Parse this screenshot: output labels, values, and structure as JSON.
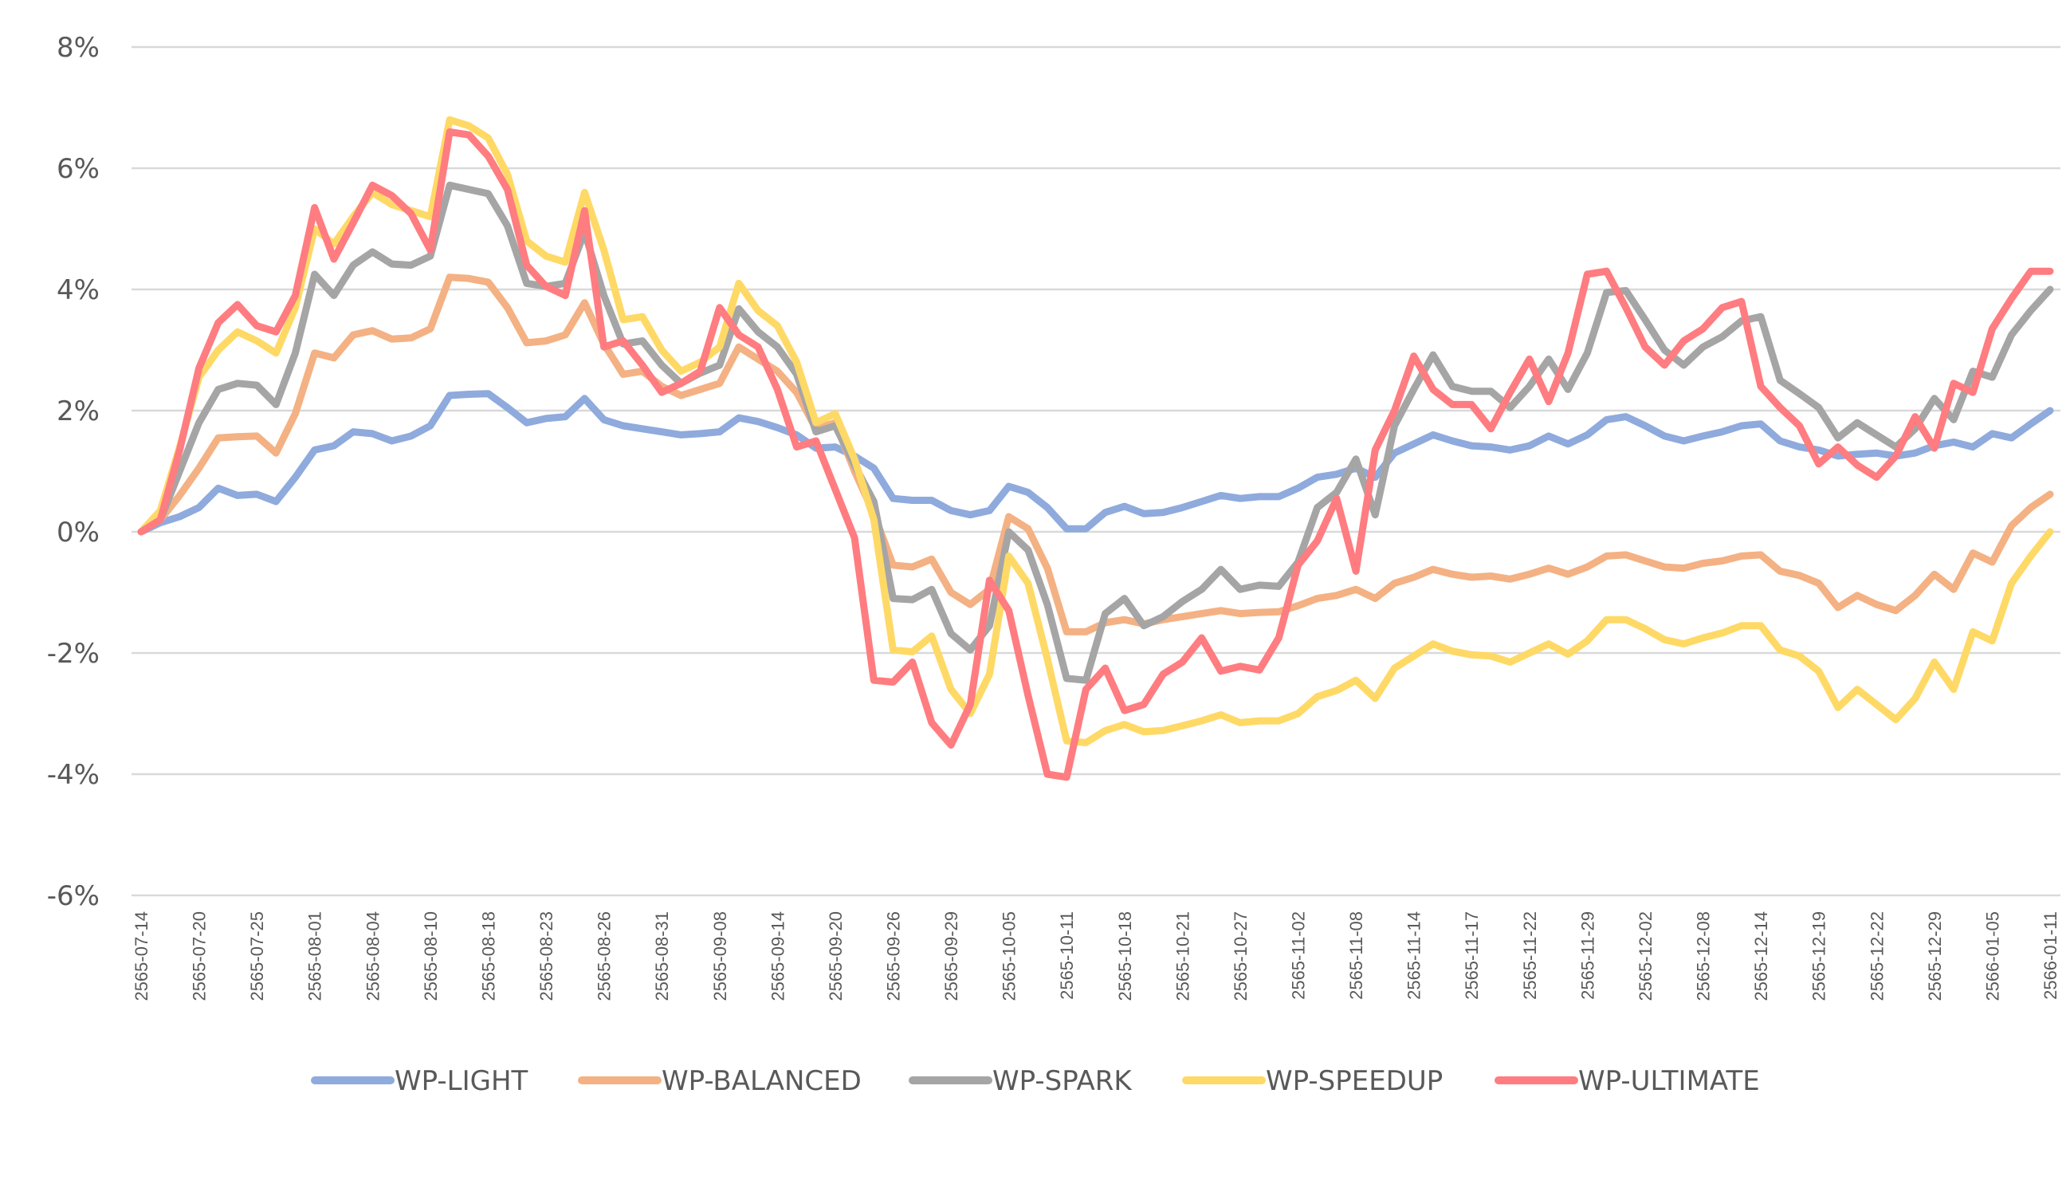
{
  "chart_data": {
    "type": "line",
    "title": "",
    "xlabel": "",
    "ylabel": "",
    "ylim": [
      -6,
      8
    ],
    "yticks": [
      8,
      6,
      4,
      2,
      0,
      -2,
      -4,
      -6
    ],
    "ytick_labels": [
      "8%",
      "6%",
      "4%",
      "2%",
      "0%",
      "-2%",
      "-4%",
      "-6%"
    ],
    "grid": true,
    "legend_position": "bottom",
    "x_tick_labels": [
      "2565-07-14",
      "2565-07-20",
      "2565-07-25",
      "2565-08-01",
      "2565-08-04",
      "2565-08-10",
      "2565-08-18",
      "2565-08-23",
      "2565-08-26",
      "2565-08-31",
      "2565-09-08",
      "2565-09-14",
      "2565-09-20",
      "2565-09-26",
      "2565-09-29",
      "2565-10-05",
      "2565-10-11",
      "2565-10-18",
      "2565-10-21",
      "2565-10-27",
      "2565-11-02",
      "2565-11-08",
      "2565-11-14",
      "2565-11-17",
      "2565-11-22",
      "2565-11-29",
      "2565-12-02",
      "2565-12-08",
      "2565-12-14",
      "2565-12-19",
      "2565-12-22",
      "2565-12-29",
      "2566-01-05",
      "2566-01-11"
    ],
    "n_points": 100,
    "series": [
      {
        "name": "WP-LIGHT",
        "color": "#8faadc",
        "values": [
          0,
          0.15,
          0.25,
          0.4,
          0.72,
          0.6,
          0.62,
          0.5,
          0.9,
          1.35,
          1.42,
          1.65,
          1.62,
          1.5,
          1.58,
          1.75,
          2.25,
          2.27,
          2.28,
          2.05,
          1.8,
          1.87,
          1.9,
          2.2,
          1.85,
          1.75,
          1.7,
          1.65,
          1.6,
          1.62,
          1.65,
          1.88,
          1.82,
          1.72,
          1.6,
          1.38,
          1.4,
          1.25,
          1.05,
          0.55,
          0.52,
          0.52,
          0.35,
          0.28,
          0.35,
          0.75,
          0.65,
          0.4,
          0.05,
          0.05,
          0.32,
          0.42,
          0.3,
          0.32,
          0.4,
          0.5,
          0.6,
          0.55,
          0.58,
          0.58,
          0.72,
          0.9,
          0.95,
          1.05,
          0.9,
          1.3,
          1.45,
          1.6,
          1.5,
          1.42,
          1.4,
          1.35,
          1.42,
          1.58,
          1.45,
          1.6,
          1.85,
          1.9,
          1.75,
          1.58,
          1.5,
          1.58,
          1.65,
          1.75,
          1.78,
          1.5,
          1.4,
          1.35,
          1.25,
          1.28,
          1.3,
          1.25,
          1.3,
          1.42,
          1.48,
          1.4,
          1.62,
          1.55,
          1.78,
          2.0
        ]
      },
      {
        "name": "WP-BALANCED",
        "color": "#f4b183",
        "values": [
          0,
          0.2,
          0.6,
          1.05,
          1.55,
          1.57,
          1.58,
          1.3,
          1.95,
          2.95,
          2.87,
          3.25,
          3.32,
          3.18,
          3.2,
          3.35,
          4.2,
          4.18,
          4.12,
          3.7,
          3.12,
          3.15,
          3.25,
          3.78,
          3.1,
          2.6,
          2.65,
          2.4,
          2.25,
          2.35,
          2.45,
          3.05,
          2.85,
          2.65,
          2.3,
          1.7,
          1.8,
          1.0,
          0.3,
          -0.55,
          -0.58,
          -0.45,
          -1.0,
          -1.2,
          -0.95,
          0.25,
          0.05,
          -0.6,
          -1.65,
          -1.65,
          -1.5,
          -1.45,
          -1.52,
          -1.45,
          -1.4,
          -1.35,
          -1.3,
          -1.35,
          -1.33,
          -1.32,
          -1.22,
          -1.1,
          -1.05,
          -0.95,
          -1.1,
          -0.85,
          -0.75,
          -0.62,
          -0.7,
          -0.75,
          -0.73,
          -0.78,
          -0.7,
          -0.6,
          -0.7,
          -0.58,
          -0.4,
          -0.38,
          -0.48,
          -0.58,
          -0.6,
          -0.52,
          -0.48,
          -0.4,
          -0.38,
          -0.65,
          -0.72,
          -0.85,
          -1.25,
          -1.05,
          -1.2,
          -1.3,
          -1.05,
          -0.7,
          -0.95,
          -0.35,
          -0.5,
          0.1,
          0.4,
          0.62
        ]
      },
      {
        "name": "WP-SPARK",
        "color": "#a5a5a5",
        "values": [
          0,
          0.2,
          1.0,
          1.8,
          2.35,
          2.45,
          2.42,
          2.1,
          2.95,
          4.25,
          3.9,
          4.4,
          4.62,
          4.42,
          4.4,
          4.55,
          5.72,
          5.65,
          5.58,
          5.05,
          4.1,
          4.05,
          4.1,
          4.95,
          3.9,
          3.1,
          3.15,
          2.75,
          2.45,
          2.62,
          2.75,
          3.68,
          3.3,
          3.05,
          2.6,
          1.65,
          1.75,
          1.1,
          0.5,
          -1.1,
          -1.12,
          -0.95,
          -1.68,
          -1.95,
          -1.55,
          0.0,
          -0.3,
          -1.2,
          -2.42,
          -2.45,
          -1.35,
          -1.1,
          -1.55,
          -1.4,
          -1.15,
          -0.95,
          -0.62,
          -0.95,
          -0.88,
          -0.9,
          -0.5,
          0.4,
          0.65,
          1.2,
          0.28,
          1.75,
          2.35,
          2.92,
          2.4,
          2.32,
          2.32,
          2.05,
          2.4,
          2.85,
          2.35,
          2.95,
          3.95,
          3.98,
          3.5,
          3.0,
          2.75,
          3.05,
          3.22,
          3.48,
          3.55,
          2.5,
          2.28,
          2.05,
          1.55,
          1.8,
          1.6,
          1.4,
          1.7,
          2.2,
          1.85,
          2.65,
          2.55,
          3.25,
          3.65,
          4.0
        ]
      },
      {
        "name": "WP-SPEEDUP",
        "color": "#ffd966",
        "values": [
          0,
          0.35,
          1.4,
          2.55,
          3.0,
          3.3,
          3.15,
          2.95,
          3.7,
          5.0,
          4.75,
          5.2,
          5.6,
          5.4,
          5.3,
          5.2,
          6.8,
          6.7,
          6.5,
          5.9,
          4.8,
          4.55,
          4.45,
          5.6,
          4.65,
          3.5,
          3.55,
          3.0,
          2.65,
          2.8,
          3.05,
          4.1,
          3.65,
          3.4,
          2.8,
          1.8,
          1.95,
          1.2,
          0.2,
          -1.95,
          -1.98,
          -1.72,
          -2.6,
          -3.0,
          -2.35,
          -0.4,
          -0.85,
          -2.1,
          -3.45,
          -3.48,
          -3.28,
          -3.18,
          -3.3,
          -3.28,
          -3.2,
          -3.12,
          -3.02,
          -3.15,
          -3.12,
          -3.12,
          -3.0,
          -2.72,
          -2.62,
          -2.45,
          -2.75,
          -2.25,
          -2.05,
          -1.85,
          -1.97,
          -2.03,
          -2.05,
          -2.15,
          -2.0,
          -1.85,
          -2.02,
          -1.8,
          -1.45,
          -1.45,
          -1.6,
          -1.78,
          -1.85,
          -1.75,
          -1.67,
          -1.55,
          -1.55,
          -1.95,
          -2.05,
          -2.3,
          -2.9,
          -2.6,
          -2.85,
          -3.1,
          -2.75,
          -2.15,
          -2.6,
          -1.65,
          -1.8,
          -0.85,
          -0.4,
          0.0
        ]
      },
      {
        "name": "WP-ULTIMATE",
        "color": "#ff7c80",
        "values": [
          0,
          0.2,
          1.35,
          2.7,
          3.45,
          3.75,
          3.4,
          3.3,
          3.9,
          5.35,
          4.5,
          5.1,
          5.72,
          5.55,
          5.25,
          4.65,
          6.6,
          6.55,
          6.2,
          5.65,
          4.4,
          4.05,
          3.9,
          5.3,
          3.05,
          3.15,
          2.75,
          2.3,
          2.45,
          2.65,
          3.7,
          3.25,
          3.05,
          2.35,
          1.4,
          1.5,
          0.7,
          -0.1,
          -2.45,
          -2.48,
          -2.15,
          -3.15,
          -3.52,
          -2.85,
          -0.8,
          -1.3,
          -2.7,
          -4.0,
          -4.05,
          -2.6,
          -2.25,
          -2.95,
          -2.85,
          -2.35,
          -2.15,
          -1.75,
          -2.3,
          -2.22,
          -2.28,
          -1.75,
          -0.55,
          -0.15,
          0.55,
          -0.65,
          1.35,
          2.0,
          2.9,
          2.35,
          2.1,
          2.1,
          1.7,
          2.3,
          2.85,
          2.15,
          2.95,
          4.25,
          4.3,
          3.7,
          3.05,
          2.75,
          3.15,
          3.35,
          3.7,
          3.8,
          2.4,
          2.05,
          1.75,
          1.12,
          1.4,
          1.1,
          0.9,
          1.25,
          1.9,
          1.38,
          2.45,
          2.3,
          3.35,
          3.85,
          4.3,
          4.3
        ]
      }
    ]
  }
}
